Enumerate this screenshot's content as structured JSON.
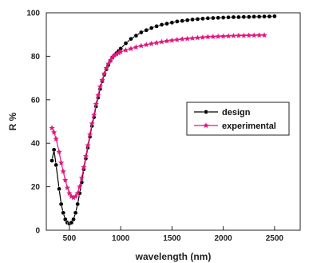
{
  "chart_data": {
    "type": "line",
    "xlabel": "wavelength (nm)",
    "ylabel": "R %",
    "xlim": [
      275,
      2750
    ],
    "ylim": [
      0,
      100
    ],
    "x_ticks": [
      500,
      1000,
      1500,
      2000,
      2500
    ],
    "y_ticks": [
      0,
      20,
      40,
      60,
      80,
      100
    ],
    "grid": false,
    "legend_position": "right-middle",
    "series": [
      {
        "name": "design",
        "color": "#000000",
        "marker": "circle",
        "x": [
          330,
          350,
          370,
          400,
          420,
          440,
          460,
          480,
          500,
          520,
          540,
          560,
          580,
          600,
          620,
          640,
          660,
          680,
          700,
          720,
          740,
          760,
          780,
          800,
          820,
          840,
          860,
          880,
          900,
          920,
          940,
          960,
          980,
          1000,
          1050,
          1100,
          1150,
          1200,
          1250,
          1300,
          1350,
          1400,
          1450,
          1500,
          1550,
          1600,
          1650,
          1700,
          1750,
          1800,
          1850,
          1900,
          1950,
          2000,
          2050,
          2100,
          2150,
          2200,
          2250,
          2300,
          2350,
          2400,
          2450,
          2500
        ],
        "y": [
          32,
          37,
          30,
          19,
          12,
          8,
          5,
          3.5,
          3,
          3.5,
          5,
          8,
          12,
          17,
          22,
          28,
          33,
          38,
          43,
          48,
          52,
          57,
          61,
          65,
          68.5,
          71.5,
          74,
          76,
          78,
          79.5,
          80.5,
          81.5,
          82.5,
          83.5,
          86,
          88,
          89.5,
          91,
          92,
          93,
          93.8,
          94.5,
          95,
          95.5,
          96,
          96.3,
          96.6,
          96.9,
          97.1,
          97.3,
          97.5,
          97.6,
          97.7,
          97.8,
          97.9,
          98,
          98,
          98.1,
          98.1,
          98.2,
          98.2,
          98.3,
          98.3,
          98.4
        ]
      },
      {
        "name": "experimental",
        "color": "#e0177f",
        "marker": "star",
        "x": [
          330,
          350,
          370,
          400,
          420,
          440,
          460,
          480,
          500,
          520,
          540,
          560,
          580,
          600,
          620,
          640,
          660,
          680,
          700,
          720,
          740,
          760,
          780,
          800,
          820,
          840,
          860,
          880,
          900,
          920,
          940,
          960,
          980,
          1000,
          1050,
          1100,
          1150,
          1200,
          1250,
          1300,
          1350,
          1400,
          1450,
          1500,
          1550,
          1600,
          1650,
          1700,
          1750,
          1800,
          1850,
          1900,
          1950,
          2000,
          2050,
          2100,
          2150,
          2200,
          2250,
          2300,
          2350,
          2400
        ],
        "y": [
          47,
          45,
          42,
          36,
          31,
          27,
          23,
          19.5,
          17,
          15.5,
          15,
          15.5,
          17,
          20,
          24,
          29,
          34,
          39,
          44,
          49,
          53,
          58,
          62,
          66,
          69,
          72,
          74.5,
          76.5,
          78,
          79.5,
          80.5,
          81,
          81.5,
          82,
          82.8,
          83.5,
          84.2,
          84.8,
          85.3,
          85.8,
          86.2,
          86.6,
          87,
          87.3,
          87.6,
          87.9,
          88.1,
          88.3,
          88.5,
          88.7,
          88.9,
          89,
          89.1,
          89.2,
          89.3,
          89.4,
          89.5,
          89.5,
          89.6,
          89.6,
          89.7,
          89.7
        ]
      }
    ]
  }
}
